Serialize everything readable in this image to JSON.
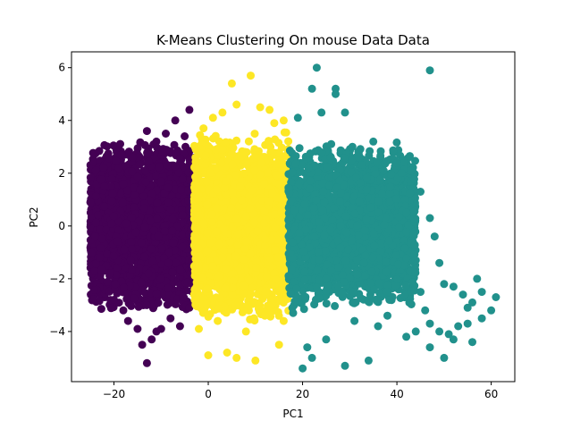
{
  "chart_data": {
    "type": "scatter",
    "title": "K-Means Clustering On mouse Data Data",
    "xlabel": "PC1",
    "ylabel": "PC2",
    "xlim": [
      -29,
      65
    ],
    "ylim": [
      -5.9,
      6.6
    ],
    "xticks": [
      -20,
      0,
      20,
      40,
      60
    ],
    "xtick_labels": [
      "−20",
      "0",
      "20",
      "40",
      "60"
    ],
    "yticks": [
      -4,
      -2,
      0,
      2,
      4,
      6
    ],
    "ytick_labels": [
      "−4",
      "−2",
      "0",
      "2",
      "4",
      "6"
    ],
    "grid": false,
    "legend": "none",
    "series": [
      {
        "color": "#440154",
        "cloud": {
          "x_range": [
            -25,
            -3
          ],
          "y_center": 0,
          "y_extent": 3.3
        },
        "points": [
          {
            "x": -25,
            "y": 0.9
          },
          {
            "x": -24,
            "y": -0.4
          },
          {
            "x": -23,
            "y": -1.2
          },
          {
            "x": -22,
            "y": 1.5
          },
          {
            "x": -19,
            "y": 2.2
          },
          {
            "x": -16,
            "y": 2.6
          },
          {
            "x": -13,
            "y": 3.6
          },
          {
            "x": -11,
            "y": 3.2
          },
          {
            "x": -9,
            "y": 3.5
          },
          {
            "x": -7,
            "y": 4.0
          },
          {
            "x": -4,
            "y": 4.4
          },
          {
            "x": -5,
            "y": 3.4
          },
          {
            "x": -18,
            "y": -3.2
          },
          {
            "x": -15,
            "y": -3.9
          },
          {
            "x": -12,
            "y": -4.3
          },
          {
            "x": -10,
            "y": -3.9
          },
          {
            "x": -14,
            "y": -4.5
          },
          {
            "x": -13,
            "y": -5.2
          },
          {
            "x": -17,
            "y": -3.6
          },
          {
            "x": -8,
            "y": -3.5
          },
          {
            "x": -6,
            "y": -3.8
          },
          {
            "x": -4,
            "y": -3.1
          },
          {
            "x": -20,
            "y": -2.8
          },
          {
            "x": -11,
            "y": -4.0
          }
        ]
      },
      {
        "color": "#fde725",
        "cloud": {
          "x_range": [
            -3,
            17
          ],
          "y_center": 0,
          "y_extent": 3.6
        },
        "points": [
          {
            "x": 9,
            "y": 5.7
          },
          {
            "x": 5,
            "y": 5.4
          },
          {
            "x": 6,
            "y": 4.6
          },
          {
            "x": 11,
            "y": 4.5
          },
          {
            "x": 13,
            "y": 4.4
          },
          {
            "x": 1,
            "y": 4.1
          },
          {
            "x": 3,
            "y": 4.3
          },
          {
            "x": 16,
            "y": 4.0
          },
          {
            "x": 14,
            "y": 3.9
          },
          {
            "x": -1,
            "y": 3.7
          },
          {
            "x": 0,
            "y": -4.9
          },
          {
            "x": 4,
            "y": -4.8
          },
          {
            "x": 6,
            "y": -5.0
          },
          {
            "x": 10,
            "y": -5.1
          },
          {
            "x": 15,
            "y": -4.5
          },
          {
            "x": 8,
            "y": -4.0
          },
          {
            "x": -2,
            "y": -3.9
          },
          {
            "x": 2,
            "y": -3.6
          },
          {
            "x": 12,
            "y": -3.4
          },
          {
            "x": 16,
            "y": -3.6
          }
        ]
      },
      {
        "color": "#21918c",
        "cloud": {
          "x_range": [
            17,
            44
          ],
          "y_center": 0,
          "y_extent": 3.2
        },
        "points": [
          {
            "x": 23,
            "y": 6.0
          },
          {
            "x": 47,
            "y": 5.9
          },
          {
            "x": 22,
            "y": 5.2
          },
          {
            "x": 27,
            "y": 5.2
          },
          {
            "x": 27,
            "y": 5.0
          },
          {
            "x": 24,
            "y": 4.3
          },
          {
            "x": 29,
            "y": 4.3
          },
          {
            "x": 19,
            "y": 4.1
          },
          {
            "x": 35,
            "y": 3.2
          },
          {
            "x": 40,
            "y": 2.4
          },
          {
            "x": 43,
            "y": 2.1
          },
          {
            "x": 45,
            "y": 1.3
          },
          {
            "x": 47,
            "y": 0.3
          },
          {
            "x": 48,
            "y": -0.4
          },
          {
            "x": 49,
            "y": -1.4
          },
          {
            "x": 50,
            "y": -2.2
          },
          {
            "x": 52,
            "y": -2.3
          },
          {
            "x": 54,
            "y": -2.6
          },
          {
            "x": 56,
            "y": -2.9
          },
          {
            "x": 58,
            "y": -2.5
          },
          {
            "x": 61,
            "y": -2.7
          },
          {
            "x": 60,
            "y": -3.2
          },
          {
            "x": 58,
            "y": -3.5
          },
          {
            "x": 55,
            "y": -3.7
          },
          {
            "x": 53,
            "y": -3.8
          },
          {
            "x": 51,
            "y": -4.1
          },
          {
            "x": 49,
            "y": -4.0
          },
          {
            "x": 47,
            "y": -3.7
          },
          {
            "x": 44,
            "y": -4.0
          },
          {
            "x": 42,
            "y": -4.2
          },
          {
            "x": 47,
            "y": -4.6
          },
          {
            "x": 50,
            "y": -5.0
          },
          {
            "x": 52,
            "y": -4.3
          },
          {
            "x": 56,
            "y": -4.4
          },
          {
            "x": 21,
            "y": -4.6
          },
          {
            "x": 22,
            "y": -5.0
          },
          {
            "x": 20,
            "y": -5.4
          },
          {
            "x": 29,
            "y": -5.3
          },
          {
            "x": 34,
            "y": -5.1
          },
          {
            "x": 25,
            "y": -4.3
          },
          {
            "x": 18,
            "y": -3.3
          },
          {
            "x": 31,
            "y": -3.6
          },
          {
            "x": 38,
            "y": -3.4
          },
          {
            "x": 36,
            "y": -3.8
          },
          {
            "x": 57,
            "y": -2.0
          },
          {
            "x": 55,
            "y": -3.1
          },
          {
            "x": 46,
            "y": -3.2
          },
          {
            "x": 44,
            "y": -1.3
          },
          {
            "x": 42,
            "y": 0.5
          },
          {
            "x": 45,
            "y": -2.5
          }
        ]
      }
    ]
  }
}
